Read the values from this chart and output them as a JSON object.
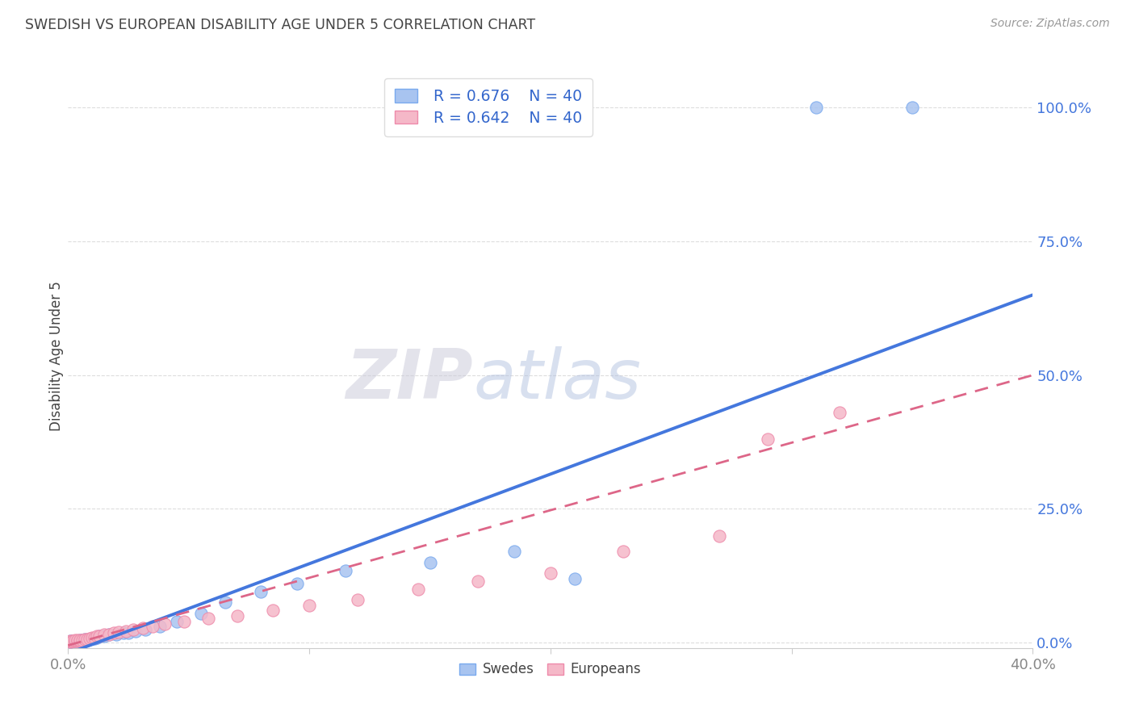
{
  "title": "SWEDISH VS EUROPEAN DISABILITY AGE UNDER 5 CORRELATION CHART",
  "source": "Source: ZipAtlas.com",
  "ylabel": "Disability Age Under 5",
  "xmin": 0.0,
  "xmax": 0.4,
  "ymin": -0.01,
  "ymax": 1.08,
  "yticks": [
    0.0,
    0.25,
    0.5,
    0.75,
    1.0
  ],
  "ytick_labels": [
    "0.0%",
    "25.0%",
    "50.0%",
    "75.0%",
    "100.0%"
  ],
  "xtick_left_label": "0.0%",
  "xtick_right_label": "40.0%",
  "legend_r_blue": "R = 0.676",
  "legend_n_blue": "N = 40",
  "legend_r_pink": "R = 0.642",
  "legend_n_pink": "N = 40",
  "blue_color": "#a8c4f0",
  "blue_edge_color": "#7aaaee",
  "pink_color": "#f5b8c8",
  "pink_edge_color": "#ee8aaa",
  "blue_line_color": "#4477dd",
  "pink_line_color": "#dd6688",
  "watermark_zip": "ZIP",
  "watermark_atlas": "atlas",
  "swedes_label": "Swedes",
  "europeans_label": "Europeans",
  "blue_scatter_x": [
    0.001,
    0.001,
    0.002,
    0.002,
    0.003,
    0.003,
    0.004,
    0.004,
    0.005,
    0.005,
    0.005,
    0.006,
    0.006,
    0.007,
    0.007,
    0.008,
    0.009,
    0.01,
    0.011,
    0.012,
    0.013,
    0.015,
    0.017,
    0.02,
    0.023,
    0.025,
    0.028,
    0.032,
    0.038,
    0.045,
    0.055,
    0.065,
    0.08,
    0.095,
    0.115,
    0.15,
    0.185,
    0.21,
    0.31,
    0.35
  ],
  "blue_scatter_y": [
    0.002,
    0.003,
    0.003,
    0.004,
    0.003,
    0.004,
    0.004,
    0.003,
    0.003,
    0.004,
    0.005,
    0.004,
    0.005,
    0.005,
    0.006,
    0.005,
    0.006,
    0.008,
    0.008,
    0.01,
    0.012,
    0.012,
    0.015,
    0.015,
    0.018,
    0.018,
    0.022,
    0.025,
    0.03,
    0.04,
    0.055,
    0.075,
    0.095,
    0.11,
    0.135,
    0.15,
    0.17,
    0.12,
    1.0,
    1.0
  ],
  "pink_scatter_x": [
    0.001,
    0.001,
    0.002,
    0.002,
    0.003,
    0.003,
    0.004,
    0.004,
    0.005,
    0.005,
    0.006,
    0.007,
    0.008,
    0.009,
    0.01,
    0.011,
    0.012,
    0.013,
    0.015,
    0.017,
    0.019,
    0.021,
    0.024,
    0.027,
    0.031,
    0.035,
    0.04,
    0.048,
    0.058,
    0.07,
    0.085,
    0.1,
    0.12,
    0.145,
    0.17,
    0.2,
    0.23,
    0.27,
    0.29,
    0.32
  ],
  "pink_scatter_y": [
    0.002,
    0.003,
    0.003,
    0.004,
    0.004,
    0.005,
    0.004,
    0.005,
    0.004,
    0.005,
    0.005,
    0.006,
    0.007,
    0.008,
    0.009,
    0.01,
    0.012,
    0.013,
    0.015,
    0.016,
    0.018,
    0.02,
    0.022,
    0.025,
    0.028,
    0.03,
    0.035,
    0.04,
    0.045,
    0.05,
    0.06,
    0.07,
    0.08,
    0.1,
    0.115,
    0.13,
    0.17,
    0.2,
    0.38,
    0.43
  ],
  "blue_line_x0": 0.0,
  "blue_line_x1": 0.4,
  "blue_line_y0": -0.02,
  "blue_line_y1": 0.65,
  "pink_line_x0": 0.0,
  "pink_line_x1": 0.4,
  "pink_line_y0": -0.005,
  "pink_line_y1": 0.5,
  "background_color": "#ffffff",
  "grid_color": "#dddddd",
  "title_color": "#444444",
  "ytick_color": "#4477dd",
  "spine_color": "#cccccc"
}
